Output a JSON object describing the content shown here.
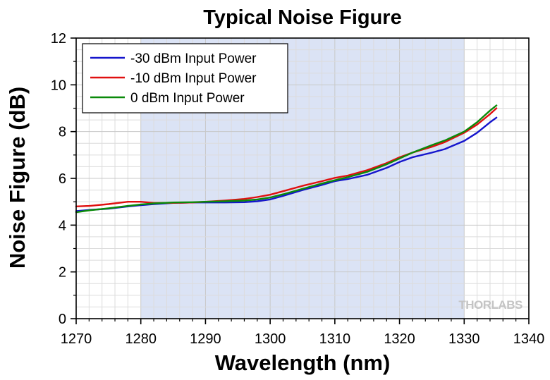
{
  "chart_data": {
    "type": "line",
    "title": "Typical Noise Figure",
    "xlabel": "Wavelength (nm)",
    "ylabel": "Noise Figure (dB)",
    "xlim": [
      1270,
      1340
    ],
    "ylim": [
      0,
      12
    ],
    "xticks": [
      1270,
      1280,
      1290,
      1300,
      1310,
      1320,
      1330,
      1340
    ],
    "yticks": [
      0,
      2,
      4,
      6,
      8,
      10,
      12
    ],
    "grid": true,
    "legend_position": "top-left",
    "highlight_band": {
      "x_start": 1280,
      "x_end": 1330,
      "color": "#dbe3f5"
    },
    "watermark": "THORLABS",
    "series": [
      {
        "name": "-30 dBm Input Power",
        "color": "#1515cc",
        "points": [
          [
            1270,
            4.6
          ],
          [
            1272,
            4.65
          ],
          [
            1275,
            4.7
          ],
          [
            1278,
            4.8
          ],
          [
            1280,
            4.85
          ],
          [
            1282,
            4.9
          ],
          [
            1285,
            4.95
          ],
          [
            1288,
            4.97
          ],
          [
            1290,
            4.97
          ],
          [
            1293,
            4.97
          ],
          [
            1296,
            4.98
          ],
          [
            1298,
            5.02
          ],
          [
            1300,
            5.1
          ],
          [
            1302,
            5.25
          ],
          [
            1305,
            5.5
          ],
          [
            1308,
            5.72
          ],
          [
            1310,
            5.88
          ],
          [
            1312,
            5.97
          ],
          [
            1315,
            6.15
          ],
          [
            1318,
            6.45
          ],
          [
            1320,
            6.7
          ],
          [
            1322,
            6.9
          ],
          [
            1325,
            7.1
          ],
          [
            1327,
            7.25
          ],
          [
            1330,
            7.6
          ],
          [
            1332,
            7.95
          ],
          [
            1334,
            8.4
          ],
          [
            1335,
            8.6
          ]
        ]
      },
      {
        "name": "-10 dBm Input Power",
        "color": "#e01010",
        "points": [
          [
            1270,
            4.8
          ],
          [
            1272,
            4.82
          ],
          [
            1275,
            4.9
          ],
          [
            1278,
            5.0
          ],
          [
            1280,
            5.0
          ],
          [
            1282,
            4.95
          ],
          [
            1285,
            4.95
          ],
          [
            1288,
            4.97
          ],
          [
            1290,
            5.0
          ],
          [
            1293,
            5.05
          ],
          [
            1296,
            5.12
          ],
          [
            1298,
            5.2
          ],
          [
            1300,
            5.3
          ],
          [
            1302,
            5.45
          ],
          [
            1305,
            5.68
          ],
          [
            1308,
            5.88
          ],
          [
            1310,
            6.02
          ],
          [
            1312,
            6.12
          ],
          [
            1315,
            6.35
          ],
          [
            1318,
            6.65
          ],
          [
            1320,
            6.9
          ],
          [
            1322,
            7.1
          ],
          [
            1325,
            7.35
          ],
          [
            1327,
            7.55
          ],
          [
            1330,
            7.95
          ],
          [
            1332,
            8.3
          ],
          [
            1334,
            8.75
          ],
          [
            1335,
            9.0
          ]
        ]
      },
      {
        "name": "0 dBm Input Power",
        "color": "#0a8a0a",
        "points": [
          [
            1270,
            4.55
          ],
          [
            1272,
            4.63
          ],
          [
            1275,
            4.72
          ],
          [
            1278,
            4.82
          ],
          [
            1280,
            4.88
          ],
          [
            1282,
            4.93
          ],
          [
            1285,
            4.97
          ],
          [
            1288,
            4.98
          ],
          [
            1290,
            5.0
          ],
          [
            1293,
            5.02
          ],
          [
            1296,
            5.05
          ],
          [
            1298,
            5.1
          ],
          [
            1300,
            5.18
          ],
          [
            1302,
            5.32
          ],
          [
            1305,
            5.55
          ],
          [
            1308,
            5.78
          ],
          [
            1310,
            5.92
          ],
          [
            1312,
            6.05
          ],
          [
            1315,
            6.28
          ],
          [
            1318,
            6.6
          ],
          [
            1320,
            6.85
          ],
          [
            1322,
            7.1
          ],
          [
            1325,
            7.42
          ],
          [
            1327,
            7.62
          ],
          [
            1330,
            8.0
          ],
          [
            1332,
            8.4
          ],
          [
            1334,
            8.9
          ],
          [
            1335,
            9.12
          ]
        ]
      }
    ]
  }
}
